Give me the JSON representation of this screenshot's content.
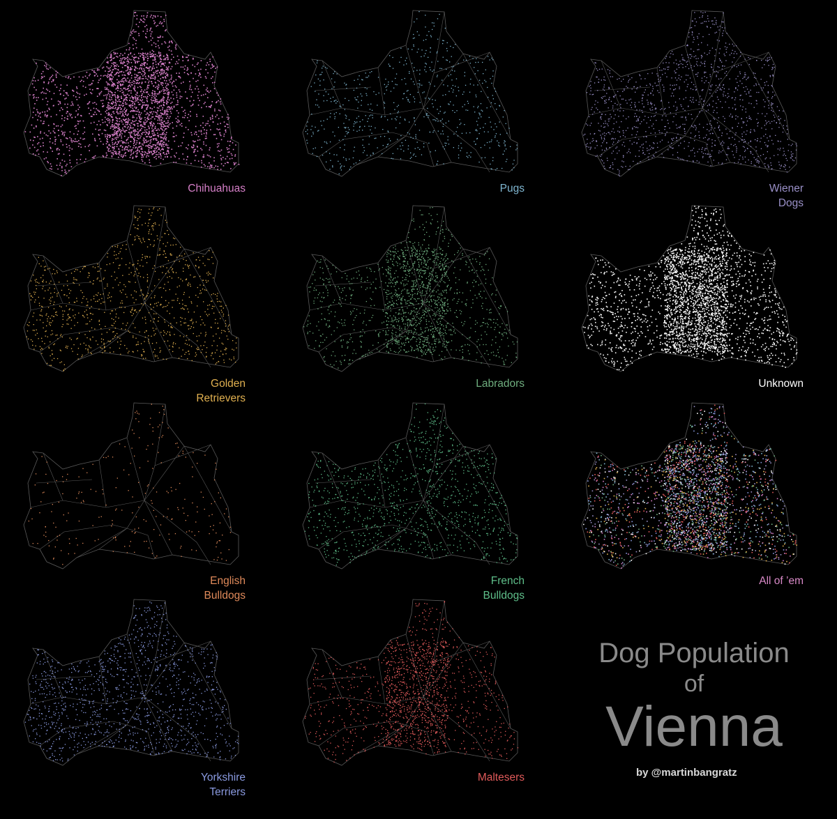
{
  "title": {
    "line1": "Dog Population",
    "line2": "of",
    "line3": "Vienna"
  },
  "credit": "by @martinbangratz",
  "map_style": {
    "background": "#000000",
    "district_stroke": "#5a5a5a"
  },
  "panels": [
    {
      "id": "chihuahuas",
      "label": "Chihuahuas",
      "color": "#d67fc8",
      "density": 0.95,
      "show_districts": false
    },
    {
      "id": "pugs",
      "label": "Pugs",
      "color": "#7fb6d0",
      "density": 0.22,
      "show_districts": true
    },
    {
      "id": "wiener-dogs",
      "label": "Wiener\nDogs",
      "color": "#9a90c8",
      "density": 0.45,
      "show_districts": true
    },
    {
      "id": "golden-retrievers",
      "label": "Golden\nRetrievers",
      "color": "#e0b050",
      "density": 0.35,
      "show_districts": true
    },
    {
      "id": "labradors",
      "label": "Labradors",
      "color": "#6fae7f",
      "density": 0.6,
      "show_districts": true
    },
    {
      "id": "unknown",
      "label": "Unknown",
      "color": "#ffffff",
      "density": 1.0,
      "show_districts": false
    },
    {
      "id": "english-bulldogs",
      "label": "English\nBulldogs",
      "color": "#e08a5a",
      "density": 0.05,
      "show_districts": true
    },
    {
      "id": "french-bulldogs",
      "label": "French\nBulldogs",
      "color": "#5fbf8a",
      "density": 0.4,
      "show_districts": true
    },
    {
      "id": "all-of-em",
      "label": "All of ’em",
      "color": "#d98ac8",
      "density": 1.0,
      "show_districts": false
    },
    {
      "id": "yorkshire-terriers",
      "label": "Yorkshire\nTerriers",
      "color": "#8a9ae0",
      "density": 0.45,
      "show_districts": true
    },
    {
      "id": "maltesers",
      "label": "Maltesers",
      "color": "#e05a5a",
      "density": 0.55,
      "show_districts": true
    }
  ]
}
